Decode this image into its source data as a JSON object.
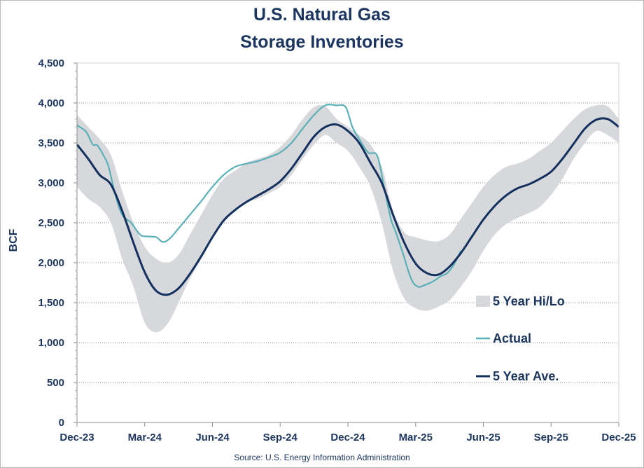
{
  "chart_data": {
    "type": "line",
    "title_line1": "U.S. Natural Gas",
    "title_line2": "Storage Inventories",
    "ylabel": "BCF",
    "source": "Source: U.S. Energy Information Administration",
    "ylim": [
      0,
      4500
    ],
    "yticks": [
      0,
      500,
      1000,
      1500,
      2000,
      2500,
      3000,
      3500,
      4000,
      4500
    ],
    "ytick_labels": [
      "0",
      "500",
      "1,000",
      "1,500",
      "2,000",
      "2,500",
      "3,000",
      "3,500",
      "4,000",
      "4,500"
    ],
    "x_unit": "months since Dec-23",
    "xlim": [
      0,
      24
    ],
    "xticks": [
      0,
      3,
      6,
      9,
      12,
      15,
      18,
      21,
      24
    ],
    "xtick_labels": [
      "Dec-23",
      "Mar-24",
      "Jun-24",
      "Sep-24",
      "Dec-24",
      "Mar-25",
      "Jun-25",
      "Sep-25",
      "Dec-25"
    ],
    "grid": "horizontal dotted",
    "legend_position": "right",
    "colors": {
      "band": "#d6d8db",
      "actual": "#5bb0b8",
      "average": "#13305e"
    },
    "legend": [
      {
        "key": "band",
        "label": "5 Year Hi/Lo"
      },
      {
        "key": "actual",
        "label": "Actual"
      },
      {
        "key": "average",
        "label": "5 Year Ave."
      }
    ],
    "series": [
      {
        "name": "5 Year Hi",
        "x": [
          0,
          0.5,
          1,
          1.5,
          2,
          2.5,
          3,
          3.5,
          4,
          4.5,
          5,
          5.5,
          6,
          6.5,
          7,
          7.5,
          8,
          8.5,
          9,
          9.5,
          10,
          10.5,
          11,
          11.5,
          12,
          12.5,
          13,
          13.5,
          14,
          14.5,
          15,
          15.5,
          16,
          16.5,
          17,
          17.5,
          18,
          18.5,
          19,
          19.5,
          20,
          20.5,
          21,
          21.5,
          22,
          22.5,
          23,
          23.5,
          24
        ],
        "values": [
          3850,
          3700,
          3550,
          3350,
          2900,
          2500,
          2200,
          2050,
          2000,
          2100,
          2350,
          2600,
          2850,
          3050,
          3150,
          3250,
          3300,
          3350,
          3450,
          3600,
          3800,
          3950,
          3960,
          3800,
          3700,
          3600,
          3480,
          3200,
          2650,
          2380,
          2320,
          2280,
          2270,
          2350,
          2550,
          2750,
          2950,
          3100,
          3200,
          3240,
          3300,
          3400,
          3500,
          3650,
          3800,
          3920,
          3970,
          3960,
          3800
        ]
      },
      {
        "name": "5 Year Lo",
        "x": [
          0,
          0.5,
          1,
          1.5,
          2,
          2.5,
          3,
          3.5,
          4,
          4.5,
          5,
          5.5,
          6,
          6.5,
          7,
          7.5,
          8,
          8.5,
          9,
          9.5,
          10,
          10.5,
          11,
          11.5,
          12,
          12.5,
          13,
          13.5,
          14,
          14.5,
          15,
          15.5,
          16,
          16.5,
          17,
          17.5,
          18,
          18.5,
          19,
          19.5,
          20,
          20.5,
          21,
          21.5,
          22,
          22.5,
          23,
          23.5,
          24
        ],
        "values": [
          2950,
          2800,
          2700,
          2500,
          2050,
          1700,
          1250,
          1130,
          1230,
          1500,
          1800,
          2050,
          2300,
          2500,
          2650,
          2750,
          2800,
          2870,
          2950,
          3100,
          3300,
          3480,
          3600,
          3500,
          3400,
          3200,
          2950,
          2500,
          1900,
          1550,
          1430,
          1400,
          1450,
          1530,
          1700,
          1900,
          2150,
          2350,
          2480,
          2560,
          2620,
          2700,
          2850,
          3050,
          3300,
          3500,
          3650,
          3600,
          3500
        ]
      },
      {
        "name": "Actual",
        "x": [
          0,
          0.4,
          0.7,
          0.9,
          1.2,
          1.4,
          1.7,
          2.0,
          2.4,
          2.8,
          3.1,
          3.5,
          3.8,
          4.1,
          4.5,
          5.0,
          5.5,
          6.0,
          6.5,
          7.0,
          7.5,
          8.0,
          8.5,
          9.0,
          9.5,
          10.0,
          10.5,
          11.0,
          11.5,
          11.9,
          12.2,
          12.5,
          12.9,
          13.3,
          13.6,
          13.9,
          14.1,
          14.4,
          14.8,
          15.1,
          15.4,
          15.8,
          16.1,
          16.4,
          16.7,
          17.0
        ],
        "values": [
          3720,
          3640,
          3480,
          3470,
          3330,
          3200,
          2850,
          2600,
          2500,
          2350,
          2330,
          2320,
          2260,
          2300,
          2430,
          2600,
          2770,
          2950,
          3100,
          3200,
          3240,
          3270,
          3320,
          3380,
          3500,
          3680,
          3850,
          3970,
          3970,
          3950,
          3700,
          3550,
          3380,
          3340,
          2950,
          2550,
          2400,
          2150,
          1800,
          1700,
          1720,
          1770,
          1830,
          1870,
          1980,
          2150
        ]
      },
      {
        "name": "5 Year Ave.",
        "x": [
          0,
          0.5,
          1,
          1.5,
          2,
          2.5,
          3,
          3.5,
          4,
          4.5,
          5,
          5.5,
          6,
          6.5,
          7,
          7.5,
          8,
          8.5,
          9,
          9.5,
          10,
          10.5,
          11,
          11.5,
          12,
          12.5,
          13,
          13.5,
          14,
          14.5,
          15,
          15.5,
          16,
          16.5,
          17,
          17.5,
          18,
          18.5,
          19,
          19.5,
          20,
          20.5,
          21,
          21.5,
          22,
          22.5,
          23,
          23.5,
          24
        ],
        "values": [
          3480,
          3300,
          3100,
          2980,
          2650,
          2250,
          1880,
          1650,
          1600,
          1680,
          1860,
          2080,
          2320,
          2530,
          2660,
          2760,
          2840,
          2920,
          3020,
          3180,
          3380,
          3580,
          3700,
          3730,
          3650,
          3500,
          3250,
          3000,
          2600,
          2250,
          1990,
          1870,
          1850,
          1950,
          2120,
          2330,
          2540,
          2710,
          2840,
          2930,
          2980,
          3050,
          3140,
          3300,
          3490,
          3680,
          3790,
          3800,
          3700
        ]
      }
    ]
  }
}
